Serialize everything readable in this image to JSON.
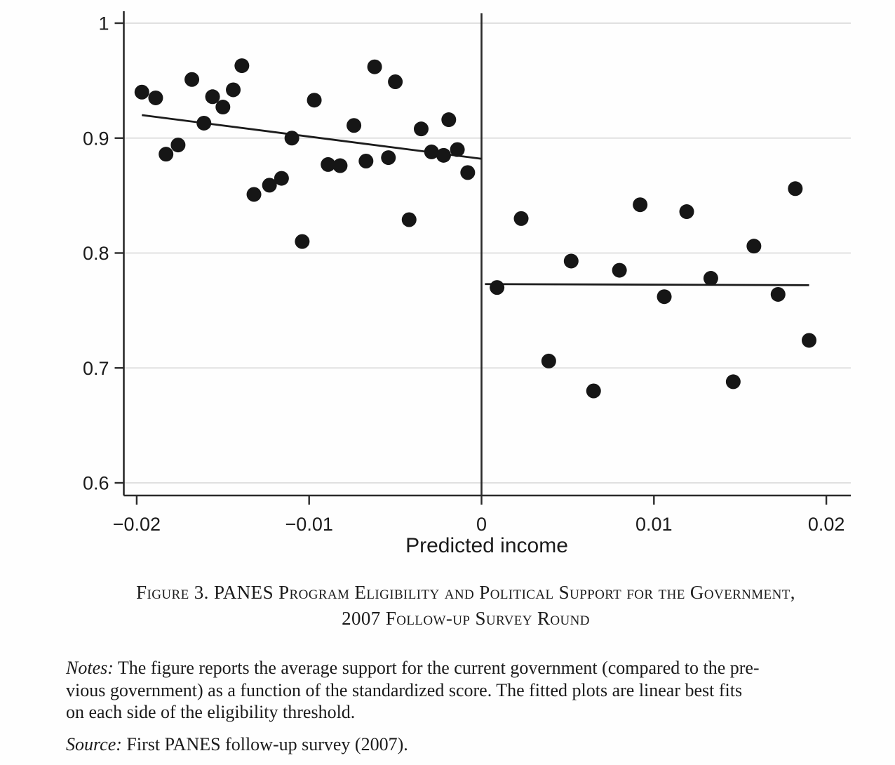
{
  "figure": {
    "caption_line1": "Figure 3. PANES Program Eligibility and Political Support for the Government,",
    "caption_line2": "2007 Follow-up Survey Round",
    "notes_label": "Notes:",
    "notes_line1": "The figure reports the average support for the current government (compared to the pre-",
    "notes_line2": "vious government) as a function of the standardized score. The fitted plots are linear best fits",
    "notes_line3": "on each side of the eligibility threshold.",
    "source_label": "Source:",
    "source_text": "First PANES follow-up survey (2007)."
  },
  "chart_data": {
    "type": "scatter",
    "title": "",
    "xlabel": "Predicted income",
    "ylabel": "",
    "xlim": [
      -0.0215,
      0.0215
    ],
    "ylim": [
      0.585,
      1.01
    ],
    "grid": true,
    "legend": "none",
    "threshold_x": 0,
    "x_ticks": [
      {
        "v": -0.02,
        "label": "−0.02"
      },
      {
        "v": -0.01,
        "label": "−0.01"
      },
      {
        "v": 0,
        "label": "0"
      },
      {
        "v": 0.01,
        "label": "0.01"
      },
      {
        "v": 0.02,
        "label": "0.02"
      }
    ],
    "y_ticks": [
      {
        "v": 0.6,
        "label": "0.6"
      },
      {
        "v": 0.7,
        "label": "0.7"
      },
      {
        "v": 0.8,
        "label": "0.8"
      },
      {
        "v": 0.9,
        "label": "0.9"
      },
      {
        "v": 1.0,
        "label": "1"
      }
    ],
    "series": [
      {
        "name": "below-threshold-bin-means",
        "points": [
          [
            -0.0197,
            0.94
          ],
          [
            -0.0189,
            0.935
          ],
          [
            -0.0183,
            0.886
          ],
          [
            -0.0176,
            0.894
          ],
          [
            -0.0168,
            0.951
          ],
          [
            -0.0161,
            0.913
          ],
          [
            -0.0156,
            0.936
          ],
          [
            -0.015,
            0.927
          ],
          [
            -0.0144,
            0.942
          ],
          [
            -0.0139,
            0.963
          ],
          [
            -0.0132,
            0.851
          ],
          [
            -0.0123,
            0.859
          ],
          [
            -0.0116,
            0.865
          ],
          [
            -0.011,
            0.9
          ],
          [
            -0.0104,
            0.81
          ],
          [
            -0.0097,
            0.933
          ],
          [
            -0.0089,
            0.877
          ],
          [
            -0.0082,
            0.876
          ],
          [
            -0.0074,
            0.911
          ],
          [
            -0.0067,
            0.88
          ],
          [
            -0.0062,
            0.962
          ],
          [
            -0.0054,
            0.883
          ],
          [
            -0.005,
            0.949
          ],
          [
            -0.0042,
            0.829
          ],
          [
            -0.0035,
            0.908
          ],
          [
            -0.0029,
            0.888
          ],
          [
            -0.0022,
            0.885
          ],
          [
            -0.0019,
            0.916
          ],
          [
            -0.0014,
            0.89
          ],
          [
            -0.0008,
            0.87
          ]
        ]
      },
      {
        "name": "above-threshold-bin-means",
        "points": [
          [
            0.0009,
            0.77
          ],
          [
            0.0023,
            0.83
          ],
          [
            0.0039,
            0.706
          ],
          [
            0.0052,
            0.793
          ],
          [
            0.0065,
            0.68
          ],
          [
            0.008,
            0.785
          ],
          [
            0.0092,
            0.842
          ],
          [
            0.0106,
            0.762
          ],
          [
            0.0119,
            0.836
          ],
          [
            0.0133,
            0.778
          ],
          [
            0.0146,
            0.688
          ],
          [
            0.0158,
            0.806
          ],
          [
            0.0172,
            0.764
          ],
          [
            0.0182,
            0.856
          ],
          [
            0.019,
            0.724
          ]
        ]
      }
    ],
    "fit_lines": [
      {
        "name": "left-linear-fit",
        "x1": -0.0197,
        "y1": 0.92,
        "x2": 0.0,
        "y2": 0.882
      },
      {
        "name": "right-linear-fit",
        "x1": 0.0002,
        "y1": 0.773,
        "x2": 0.019,
        "y2": 0.772
      }
    ],
    "colors": {
      "point": "#161616",
      "axis": "#2b2b2b",
      "grid": "#d6d6d6",
      "fit": "#1c1c1c",
      "text": "#1b1b1b"
    }
  }
}
